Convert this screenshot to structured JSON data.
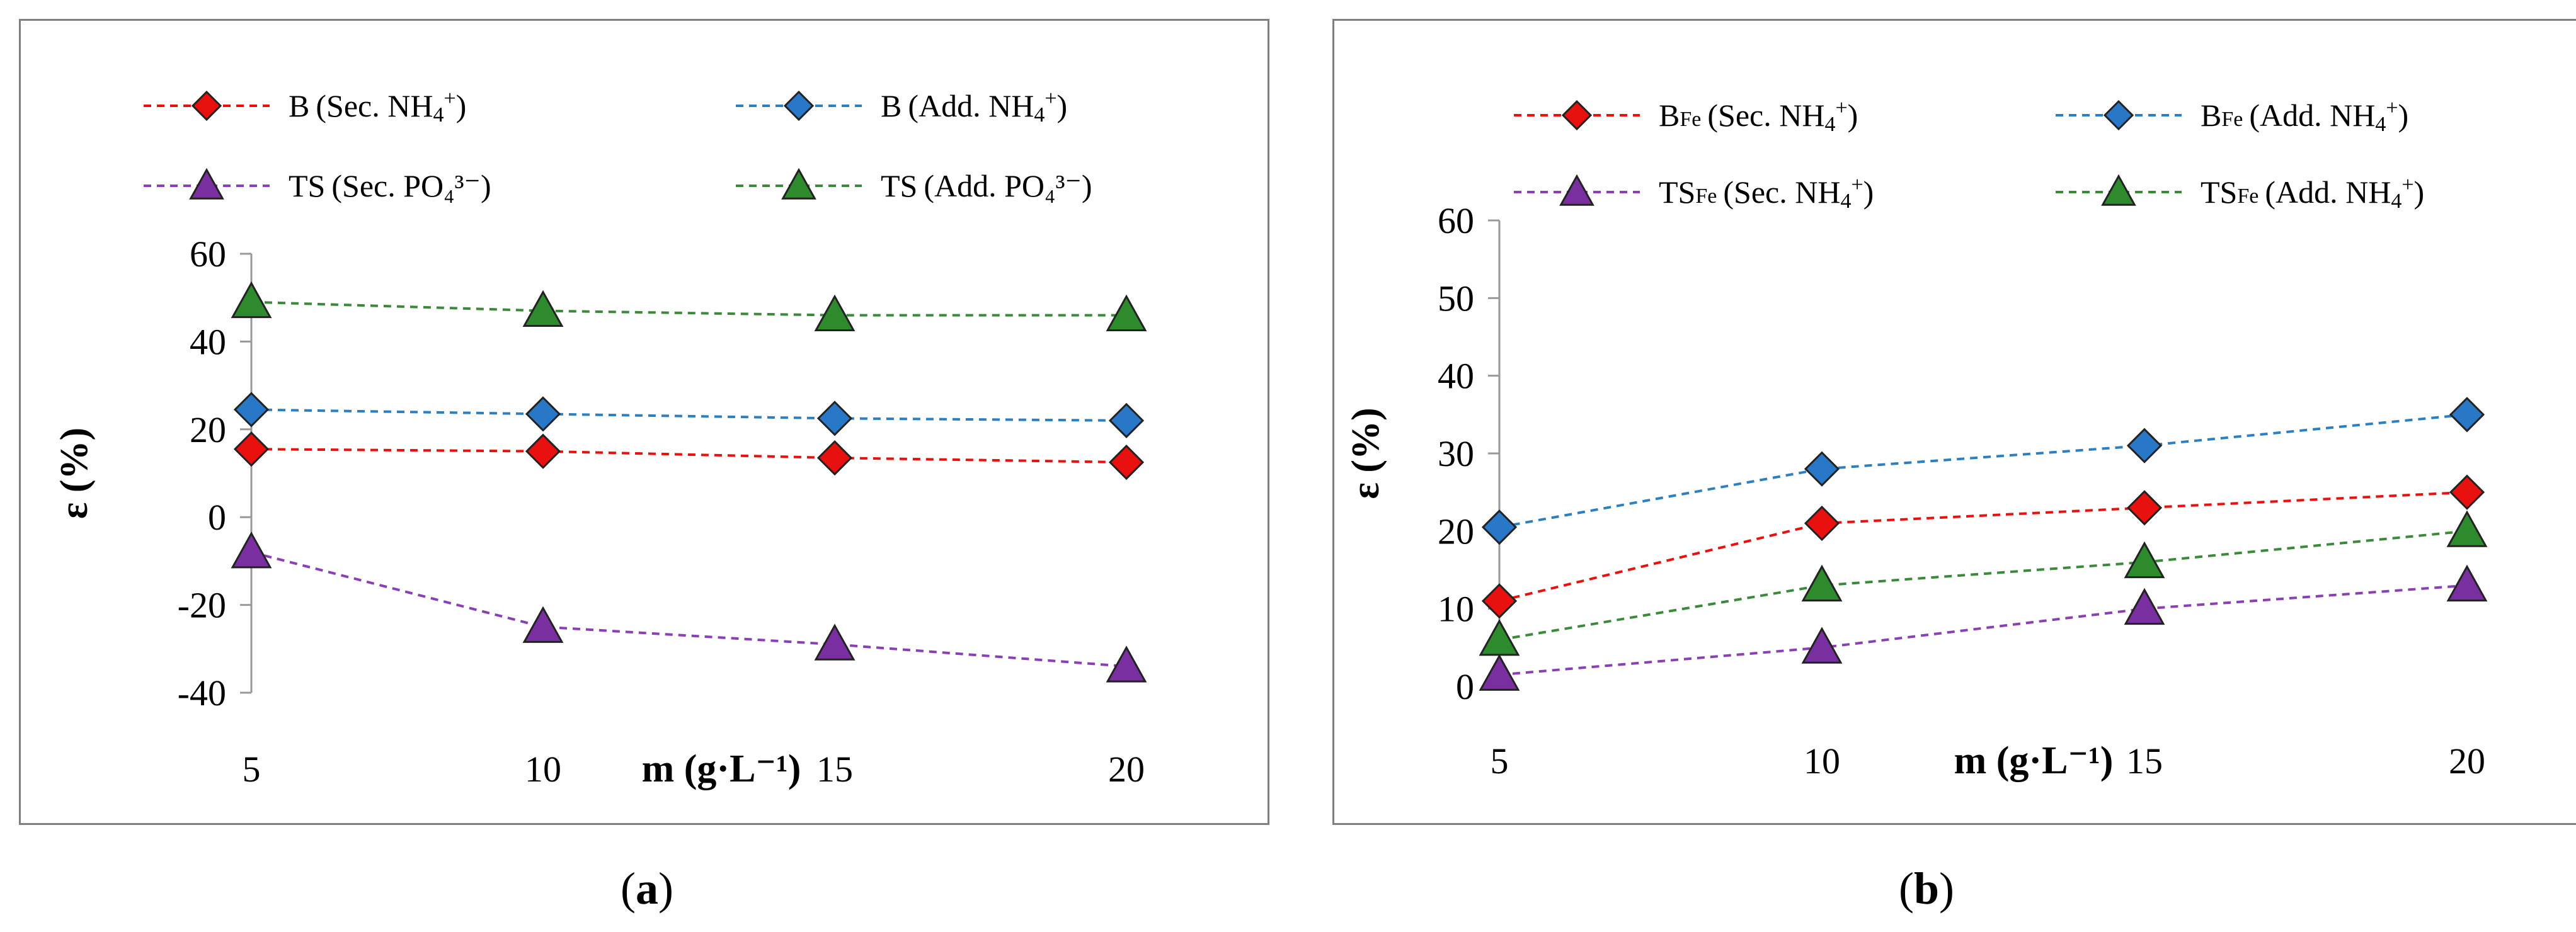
{
  "chart_data": [
    {
      "id": "a",
      "type": "line",
      "caption": "a",
      "xlabel": "m (g·L⁻¹)",
      "ylabel": "ε (%)",
      "x": [
        5,
        10,
        15,
        20
      ],
      "x_tick_labels": [
        "5",
        "10",
        "15",
        "20"
      ],
      "ylim": [
        -40,
        60
      ],
      "y_ticks": [
        -40,
        -20,
        0,
        20,
        40,
        60
      ],
      "y_tick_labels": [
        "-40",
        "-20",
        "0",
        "20",
        "40",
        "60"
      ],
      "grid": false,
      "legend_position": "top",
      "series": [
        {
          "name": "B (Sec. NH₄⁺)",
          "marker": "diamond",
          "color": "#e8110f",
          "line_color": "#e8110f",
          "values": [
            15.5,
            15,
            13.5,
            12.5
          ]
        },
        {
          "name": "B (Add. NH₄⁺)",
          "marker": "diamond",
          "color": "#2878c7",
          "line_color": "#2c7fc0",
          "values": [
            24.5,
            23.5,
            22.5,
            22
          ]
        },
        {
          "name": "TS (Sec. PO₄³⁻)",
          "marker": "triangle",
          "color": "#7a2fa0",
          "line_color": "#8a3fb4",
          "values": [
            -8,
            -25,
            -29,
            -34
          ]
        },
        {
          "name": "TS (Add. PO₄³⁻)",
          "marker": "triangle",
          "color": "#2d8a2d",
          "line_color": "#3a8a3a",
          "values": [
            49,
            47,
            46,
            46
          ]
        }
      ]
    },
    {
      "id": "b",
      "type": "line",
      "caption": "b",
      "xlabel": "m (g·L⁻¹)",
      "ylabel": "ε (%)",
      "x": [
        5,
        10,
        15,
        20
      ],
      "x_tick_labels": [
        "5",
        "10",
        "15",
        "20"
      ],
      "ylim": [
        0,
        60
      ],
      "y_ticks": [
        0,
        10,
        20,
        30,
        40,
        50,
        60
      ],
      "y_tick_labels": [
        "0",
        "10",
        "20",
        "30",
        "40",
        "50",
        "60"
      ],
      "grid": false,
      "legend_position": "top",
      "series": [
        {
          "name": "BFe (Sec. NH₄⁺)",
          "marker": "diamond",
          "color": "#e8110f",
          "line_color": "#e8110f",
          "values": [
            11,
            21,
            23,
            25
          ]
        },
        {
          "name": "BFe (Add. NH₄⁺)",
          "marker": "diamond",
          "color": "#2878c7",
          "line_color": "#2c7fc0",
          "values": [
            20.5,
            28,
            31,
            35
          ]
        },
        {
          "name": "TSFe (Sec. NH₄⁺)",
          "marker": "triangle",
          "color": "#7a2fa0",
          "line_color": "#8a3fb4",
          "values": [
            1.5,
            5,
            10,
            13
          ]
        },
        {
          "name": "TSFe (Add. NH₄⁺)",
          "marker": "triangle",
          "color": "#2d8a2d",
          "line_color": "#3a8a3a",
          "values": [
            6,
            13,
            16,
            20
          ]
        }
      ]
    }
  ]
}
